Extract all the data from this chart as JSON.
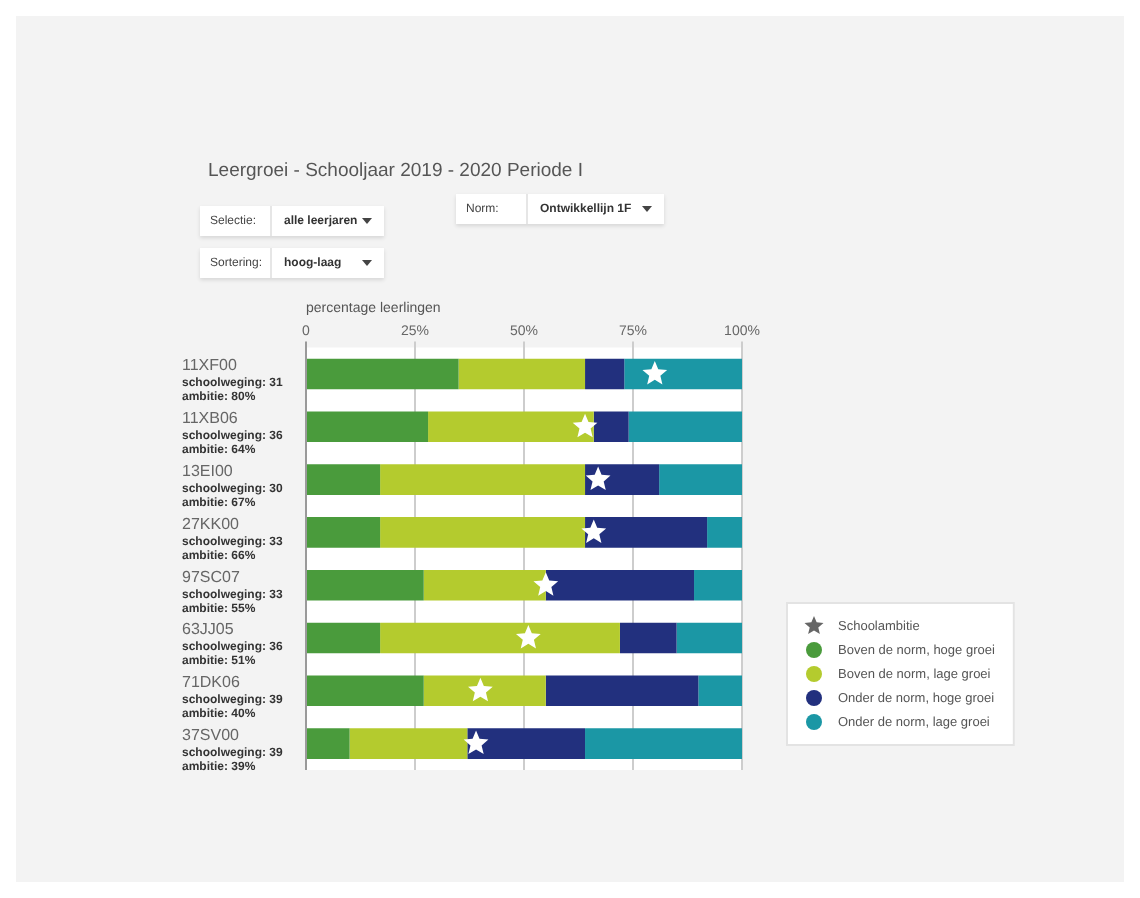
{
  "chart_data": {
    "type": "bar",
    "orientation": "horizontal",
    "stacked": true,
    "title": "Leergroei - Schooljaar 2019 - 2020 Periode I",
    "xlabel": "percentage leerlingen",
    "categories": [
      "11XF00\nschoolweging: 31\nambitie: 80%",
      "11XB06\nschoolweging: 36\nambitie: 64%",
      "13EI00\nschoolweging: 30\nambitie: 67%",
      "27KK00\nschoolweging: 33\nambitie: 66%",
      "97SC07\nschoolweging: 33\nambitie: 55%",
      "63JJ05\nschoolweging: 36\nambitie: 51%",
      "71DK06\nschoolweging: 39\nambitie: 40%",
      "37SV00\nschoolweging: 39\nambitie: 39%"
    ],
    "series": [
      {
        "name": "Schoolambitie",
        "type": "scatter",
        "marker": "star",
        "color": "#ffffff",
        "values": [
          80,
          64,
          67,
          66,
          55,
          51,
          40,
          39
        ]
      },
      {
        "name": "Boven de norm, hoge groei",
        "color": "#4a9b3c",
        "values": [
          35,
          28,
          17,
          17,
          27,
          17,
          27,
          10
        ]
      },
      {
        "name": "Boven de norm, lage groei",
        "color": "#b4cb2e",
        "values": [
          29,
          38,
          47,
          47,
          28,
          55,
          28,
          27
        ]
      },
      {
        "name": "Onder de norm, hoge groei",
        "color": "#22307e",
        "values": [
          9,
          8,
          17,
          28,
          34,
          13,
          35,
          27
        ]
      },
      {
        "name": "Onder de norm, lage groei",
        "color": "#1b97a5",
        "values": [
          27,
          26,
          19,
          8,
          11,
          15,
          10,
          36
        ]
      }
    ],
    "xlim": [
      0,
      100
    ],
    "xticks": [
      0,
      {
        "value": 25,
        "label": "25%"
      },
      {
        "value": 50,
        "label": "50%"
      },
      {
        "value": 75,
        "label": "75%"
      },
      {
        "value": 100,
        "label": "100%"
      }
    ],
    "grid": "x",
    "legend": "bottom right",
    "annotations": [
      "Selectie:",
      "alle leerjaren",
      "Sortering:",
      "hoog-laag",
      "Norm:",
      "Ontwikkellijn 1F"
    ]
  }
}
